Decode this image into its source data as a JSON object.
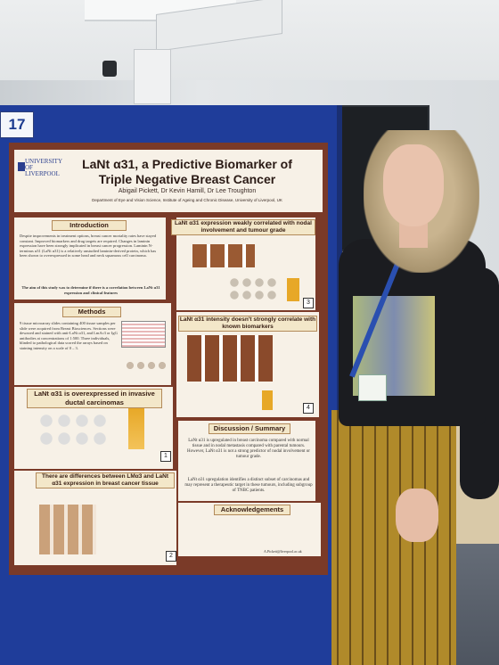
{
  "board_number": "17",
  "poster": {
    "logo_text": "UNIVERSITY OF LIVERPOOL",
    "title_line1": "LaNt α31, a Predictive Biomarker of",
    "title_line2": "Triple Negative Breast Cancer",
    "authors": "Abigail Pickett, Dr Kevin Hamill, Dr Lee Troughton",
    "department": "Department of Eye and Vision Science, Institute of Ageing and Chronic Disease, University of Liverpool, UK",
    "sections": {
      "introduction": "Introduction",
      "methods": "Methods",
      "overexpressed": "LaNt α31 is overexpressed in invasive ductal carcinomas",
      "differences": "There are differences between LMα3 and LaNt α31 expression in breast cancer tissue",
      "correlated": "LaNt α31 expression weakly correlated with nodal involvement and tumour grade",
      "intensity": "LaNt α31 intensity doesn't strongly correlate with known biomarkers",
      "discussion": "Discussion / Summary",
      "acknowledgements": "Acknowledgements"
    },
    "intro_text": "Despite improvements in treatment options, breast cancer mortality rates have stayed constant. Improved biomarkers and drug targets are required. Changes in laminin expression have been strongly implicated in breast cancer progression. Laminin N-terminus α31 (LaNt α31) is a relatively unstudied laminin-derived protein, which has been shown to overexpressed in some head and neck squamous cell carcinoma.",
    "aim_text": "The aim of this study was to determine if there is a correlation between LaNt α31 expression and clinical features",
    "methods_text": "9 tissue microarray slides containing 400 tissue samples per slide were acquired from Breast Biosciences. Sections were dewaxed and stained with anti-LaNt α31, and LmAc3 or IgG antibodies at concentrations of 1:500. Three individuals, blinded to pathological data scored the arrays based on staining intensity on a scale of 0 – 3.",
    "discussion_text1": "LaNt α31 is upregulated in breast carcinoma compared with normal tissue and in nodal metastasis compared with parental tumours. However, LaNt α31 is not a strong predictor of nodal involvement or tumour grade.",
    "discussion_text2": "LaNt α31 upregulation identifies a distinct subset of carcinomas and may represent a therapeutic target in these tumours, including subgroup of TNBC patients.",
    "panel_numbers": [
      "1",
      "2",
      "3",
      "4"
    ],
    "contact": "A.Pickett@liverpool.ac.uk"
  },
  "colors": {
    "board": "#1f3d9a",
    "poster_frame": "#7a3a28",
    "panel": "#f7f1e7",
    "section_header": "#f3e7c9"
  }
}
